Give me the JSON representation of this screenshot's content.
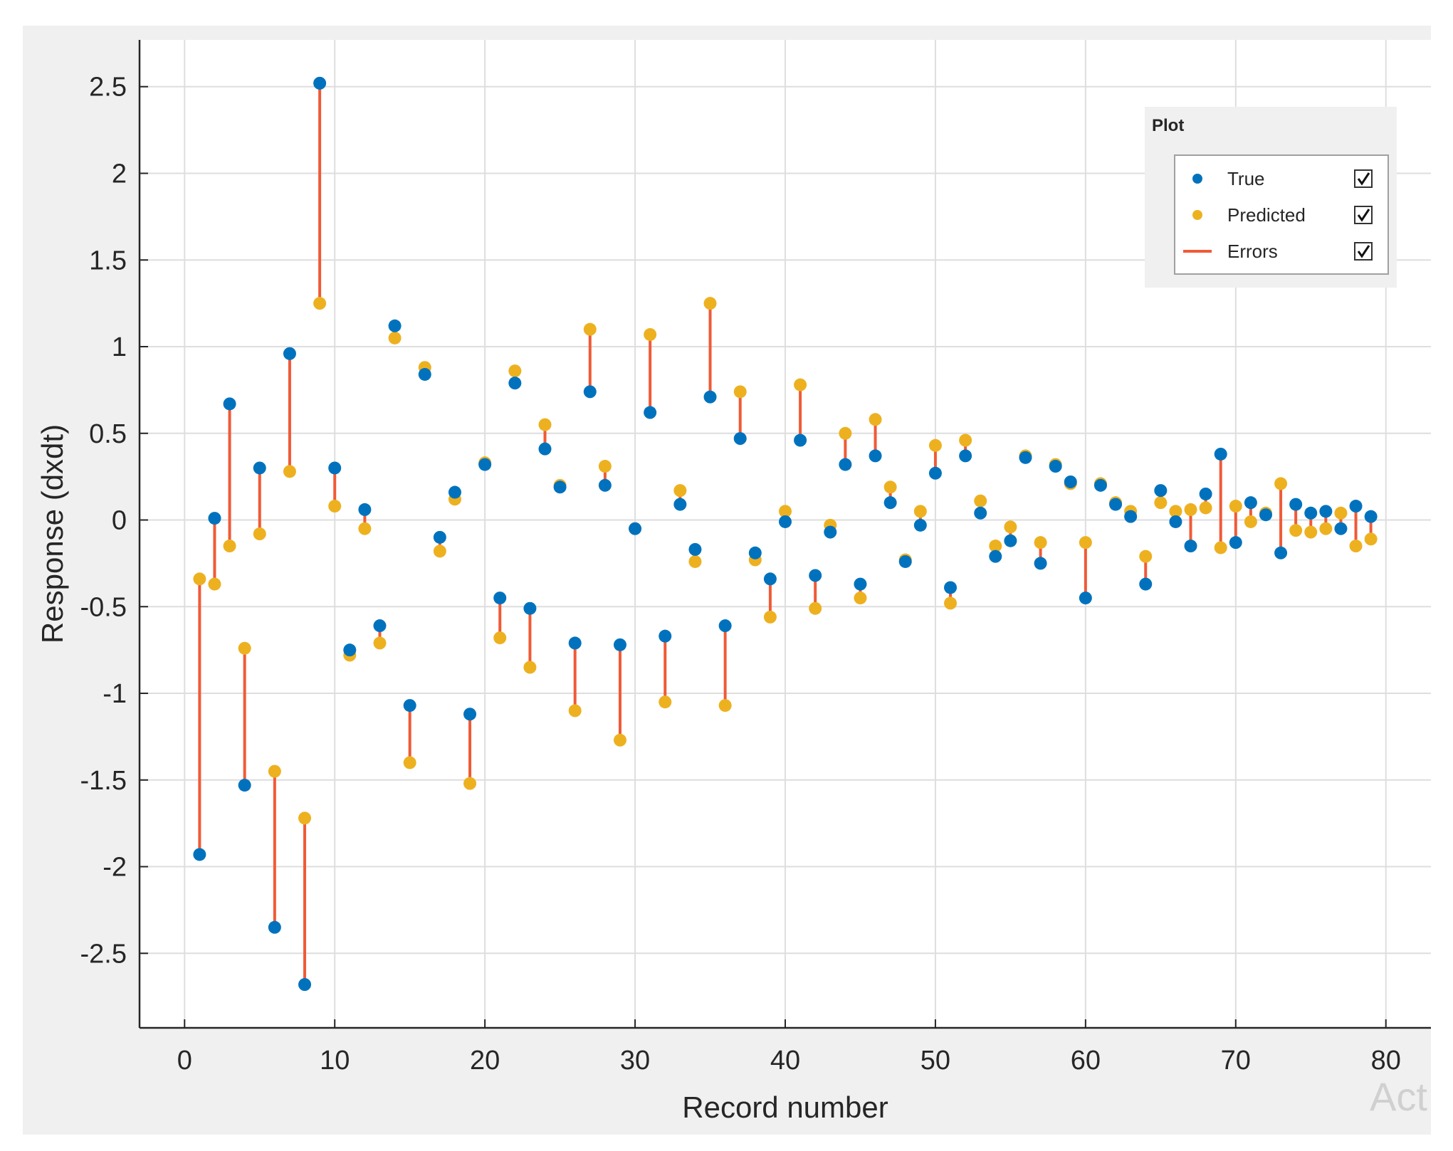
{
  "chart_data": {
    "type": "scatter",
    "title": "",
    "xlabel": "Record number",
    "ylabel": "Response (dxdt)",
    "xlim": [
      -3,
      83
    ],
    "ylim": [
      -2.93,
      2.77
    ],
    "xticks": [
      0,
      10,
      20,
      30,
      40,
      50,
      60,
      70,
      80
    ],
    "yticks": [
      2.5,
      2,
      1.5,
      1,
      0.5,
      0,
      -0.5,
      -1,
      -1.5,
      -2,
      -2.5
    ],
    "ytick_labels": [
      "2.5",
      "2",
      "1.5",
      "1",
      "0.5",
      "0",
      "-0.5",
      "-1",
      "-1.5",
      "-2",
      "-2.5"
    ],
    "grid": true,
    "legend_position": "top-right",
    "legend_title": "Plot",
    "legend": [
      {
        "name": "True",
        "color": "#0072bd",
        "checked": true
      },
      {
        "name": "Predicted",
        "color": "#edb120",
        "checked": true
      },
      {
        "name": "Errors",
        "color": "#f05a37",
        "checked": true
      }
    ],
    "x": [
      1,
      2,
      3,
      4,
      5,
      6,
      7,
      8,
      9,
      10,
      11,
      12,
      13,
      14,
      15,
      16,
      17,
      18,
      19,
      20,
      21,
      22,
      23,
      24,
      25,
      26,
      27,
      28,
      29,
      30,
      31,
      32,
      33,
      34,
      35,
      36,
      37,
      38,
      39,
      40,
      41,
      42,
      43,
      44,
      45,
      46,
      47,
      48,
      49,
      50,
      51,
      52,
      53,
      54,
      55,
      56,
      57,
      58,
      59,
      60,
      61,
      62,
      63,
      64,
      65,
      66,
      67,
      68,
      69,
      70,
      71,
      72,
      73,
      74,
      75,
      76,
      77,
      78,
      79
    ],
    "series": [
      {
        "name": "True",
        "color": "#0072bd",
        "values": [
          -1.93,
          0.01,
          0.67,
          -1.53,
          0.3,
          -2.35,
          0.96,
          -2.68,
          2.52,
          0.3,
          -0.75,
          0.06,
          -0.61,
          1.12,
          -1.07,
          0.84,
          -0.1,
          0.16,
          -1.12,
          0.32,
          -0.45,
          0.79,
          -0.51,
          0.41,
          0.19,
          -0.71,
          0.74,
          0.2,
          -0.72,
          -0.05,
          0.62,
          -0.67,
          0.09,
          -0.17,
          0.71,
          -0.61,
          0.47,
          -0.19,
          -0.34,
          -0.01,
          0.46,
          -0.32,
          -0.07,
          0.32,
          -0.37,
          0.37,
          0.1,
          -0.24,
          -0.03,
          0.27,
          -0.39,
          0.37,
          0.04,
          -0.21,
          -0.12,
          0.36,
          -0.25,
          0.31,
          0.22,
          -0.45,
          0.2,
          0.09,
          0.02,
          -0.37,
          0.17,
          -0.01,
          -0.15,
          0.15,
          0.38,
          -0.13,
          0.1,
          0.03,
          -0.19,
          0.09,
          0.04,
          0.05,
          -0.05,
          0.08,
          0.02
        ]
      },
      {
        "name": "Predicted",
        "color": "#edb120",
        "values": [
          -0.34,
          -0.37,
          -0.15,
          -0.74,
          -0.08,
          -1.45,
          0.28,
          -1.72,
          1.25,
          0.08,
          -0.78,
          -0.05,
          -0.71,
          1.05,
          -1.4,
          0.88,
          -0.18,
          0.12,
          -1.52,
          0.33,
          -0.68,
          0.86,
          -0.85,
          0.55,
          0.2,
          -1.1,
          1.1,
          0.31,
          -1.27,
          -0.05,
          1.07,
          -1.05,
          0.17,
          -0.24,
          1.25,
          -1.07,
          0.74,
          -0.23,
          -0.56,
          0.05,
          0.78,
          -0.51,
          -0.03,
          0.5,
          -0.45,
          0.58,
          0.19,
          -0.23,
          0.05,
          0.43,
          -0.48,
          0.46,
          0.11,
          -0.15,
          -0.04,
          0.37,
          -0.13,
          0.32,
          0.21,
          -0.13,
          0.21,
          0.1,
          0.05,
          -0.21,
          0.1,
          0.05,
          0.06,
          0.07,
          -0.16,
          0.08,
          -0.01,
          0.04,
          0.21,
          -0.06,
          -0.07,
          -0.05,
          0.04,
          -0.15,
          -0.11
        ]
      }
    ]
  },
  "watermark": "Act"
}
